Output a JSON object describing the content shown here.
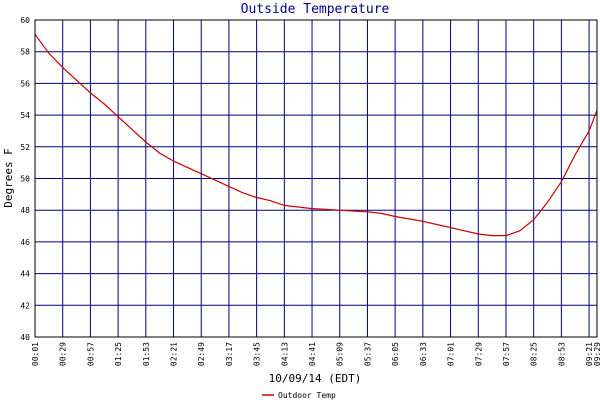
{
  "chart_data": {
    "type": "line",
    "title": "Outside Temperature",
    "xlabel": "10/09/14 (EDT)",
    "ylabel": "Degrees F",
    "ylim": [
      40,
      60
    ],
    "yticks": [
      "40",
      "42",
      "44",
      "46",
      "48",
      "50",
      "52",
      "54",
      "56",
      "58",
      "60"
    ],
    "xlim": [
      "00:01",
      "09:29"
    ],
    "xticks": [
      "00:01",
      "00:29",
      "00:57",
      "01:25",
      "01:53",
      "02:21",
      "02:49",
      "03:17",
      "03:45",
      "04:13",
      "04:41",
      "05:09",
      "05:37",
      "06:05",
      "06:33",
      "07:01",
      "07:29",
      "07:57",
      "08:25",
      "08:53",
      "09:21",
      "09:29"
    ],
    "grid": true,
    "legend": "bottom-center",
    "colors": {
      "frame": "#000000",
      "grid": "#000080",
      "title": "#000080",
      "text": "#000000",
      "line": "#cc0000"
    },
    "series": [
      {
        "name": "Outdoor Temp",
        "x": [
          "00:01",
          "00:15",
          "00:29",
          "00:43",
          "00:57",
          "01:11",
          "01:25",
          "01:39",
          "01:53",
          "02:07",
          "02:21",
          "02:35",
          "02:49",
          "03:03",
          "03:17",
          "03:31",
          "03:45",
          "03:59",
          "04:13",
          "04:27",
          "04:41",
          "04:55",
          "05:09",
          "05:23",
          "05:37",
          "05:51",
          "06:05",
          "06:19",
          "06:33",
          "06:47",
          "07:01",
          "07:15",
          "07:29",
          "07:43",
          "07:57",
          "08:11",
          "08:25",
          "08:39",
          "08:53",
          "09:07",
          "09:21",
          "09:29"
        ],
        "y": [
          59.1,
          57.9,
          57.0,
          56.2,
          55.4,
          54.7,
          53.9,
          53.1,
          52.3,
          51.6,
          51.1,
          50.7,
          50.3,
          49.9,
          49.5,
          49.1,
          48.8,
          48.6,
          48.3,
          48.2,
          48.1,
          48.05,
          48.0,
          47.95,
          47.9,
          47.8,
          47.6,
          47.45,
          47.3,
          47.1,
          46.9,
          46.7,
          46.5,
          46.4,
          46.4,
          46.7,
          47.4,
          48.5,
          49.8,
          51.5,
          53.0,
          54.3
        ]
      }
    ]
  }
}
